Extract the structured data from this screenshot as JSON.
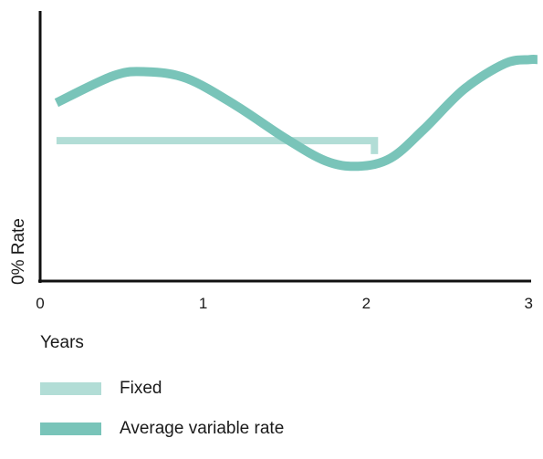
{
  "chart_data": {
    "type": "line",
    "xlabel": "Years",
    "ylabel": "0% Rate",
    "xlim": [
      0,
      3
    ],
    "ylim": [
      0,
      10
    ],
    "x_ticks": [
      "0",
      "1",
      "2",
      "3"
    ],
    "grid": false,
    "legend_position": "bottom-left",
    "series": [
      {
        "name": "Fixed",
        "color": "#b2ddd6",
        "points": [
          [
            0.1,
            5.2
          ],
          [
            2.05,
            5.2
          ],
          [
            2.05,
            4.7
          ]
        ]
      },
      {
        "name": "Average variable rate",
        "color": "#79c4b9",
        "points": [
          [
            0.1,
            6.6
          ],
          [
            0.45,
            7.6
          ],
          [
            0.65,
            7.75
          ],
          [
            0.9,
            7.5
          ],
          [
            1.2,
            6.5
          ],
          [
            1.5,
            5.3
          ],
          [
            1.75,
            4.45
          ],
          [
            1.95,
            4.25
          ],
          [
            2.15,
            4.55
          ],
          [
            2.35,
            5.6
          ],
          [
            2.6,
            7.1
          ],
          [
            2.85,
            8.05
          ],
          [
            3.0,
            8.2
          ],
          [
            3.05,
            8.2
          ]
        ]
      }
    ]
  }
}
